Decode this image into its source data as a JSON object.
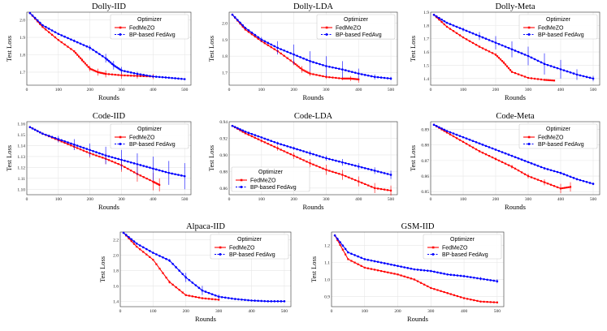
{
  "figure": {
    "xlabel": "Rounds",
    "ylabel": "Test Loss",
    "legend_title": "Optimizer",
    "series_names": [
      "FedMeZO",
      "BP-based FedAvg"
    ],
    "colors": {
      "fedmezo": "#ff0000",
      "fedavg": "#0000ff"
    }
  },
  "chart_data": [
    {
      "type": "line",
      "title": "Dolly-IID",
      "xlim": [
        0,
        520
      ],
      "ylim": [
        1.625,
        2.045
      ],
      "xticks": [
        0,
        100,
        200,
        300,
        400,
        500
      ],
      "yticks": [
        1.7,
        1.8,
        1.9,
        2.0
      ],
      "ytick_decimals": 1,
      "legend": "top-right",
      "series": [
        {
          "name": "FedMeZO",
          "color": "#ff0000",
          "x": [
            10,
            50,
            100,
            150,
            175,
            200,
            225,
            250,
            300,
            350,
            400
          ],
          "y": [
            2.04,
            1.96,
            1.885,
            1.82,
            1.77,
            1.72,
            1.7,
            1.69,
            1.682,
            1.678,
            1.675
          ],
          "err": [
            0,
            0.003,
            0.004,
            0.006,
            0.01,
            0.015,
            0.02,
            0.02,
            0.02,
            0.015,
            0.015
          ]
        },
        {
          "name": "BP-based FedAvg",
          "color": "#0000ff",
          "x": [
            10,
            50,
            100,
            150,
            200,
            250,
            275,
            300,
            350,
            400,
            450,
            500
          ],
          "y": [
            2.04,
            1.97,
            1.92,
            1.88,
            1.84,
            1.78,
            1.74,
            1.71,
            1.69,
            1.675,
            1.668,
            1.66
          ],
          "err": [
            0,
            0.003,
            0.005,
            0.008,
            0.015,
            0.025,
            0.025,
            0.02,
            0.012,
            0.008,
            0.006,
            0.005
          ]
        }
      ]
    },
    {
      "type": "line",
      "title": "Dolly-LDA",
      "xlim": [
        0,
        520
      ],
      "ylim": [
        1.625,
        2.065
      ],
      "xticks": [
        0,
        100,
        200,
        300,
        400,
        500
      ],
      "yticks": [
        1.7,
        1.8,
        1.9,
        2.0
      ],
      "ytick_decimals": 1,
      "legend": "top-right",
      "series": [
        {
          "name": "FedMeZO",
          "color": "#ff0000",
          "x": [
            10,
            50,
            100,
            150,
            200,
            225,
            250,
            300,
            350,
            375,
            400
          ],
          "y": [
            2.05,
            1.96,
            1.89,
            1.83,
            1.76,
            1.72,
            1.695,
            1.675,
            1.665,
            1.665,
            1.66
          ],
          "err": [
            0,
            0.003,
            0.005,
            0.01,
            0.015,
            0.02,
            0.015,
            0.012,
            0.01,
            0.015,
            0.02
          ]
        },
        {
          "name": "BP-based FedAvg",
          "color": "#0000ff",
          "x": [
            10,
            50,
            100,
            150,
            200,
            250,
            300,
            350,
            400,
            450,
            500
          ],
          "y": [
            2.05,
            1.97,
            1.9,
            1.85,
            1.81,
            1.77,
            1.74,
            1.72,
            1.695,
            1.675,
            1.665
          ],
          "err": [
            0,
            0.005,
            0.015,
            0.04,
            0.06,
            0.06,
            0.06,
            0.05,
            0.03,
            0.015,
            0.01
          ]
        }
      ]
    },
    {
      "type": "line",
      "title": "Dolly-Meta",
      "xlim": [
        0,
        520
      ],
      "ylim": [
        1.35,
        1.9
      ],
      "xticks": [
        0,
        100,
        200,
        300,
        400,
        500
      ],
      "yticks": [
        1.4,
        1.5,
        1.6,
        1.7,
        1.8,
        1.9
      ],
      "ytick_decimals": 1,
      "legend": "top-right",
      "series": [
        {
          "name": "FedMeZO",
          "color": "#ff0000",
          "x": [
            10,
            50,
            100,
            150,
            200,
            225,
            250,
            300,
            350,
            380
          ],
          "y": [
            1.88,
            1.79,
            1.71,
            1.64,
            1.58,
            1.52,
            1.45,
            1.405,
            1.39,
            1.385
          ],
          "err": [
            0,
            0.003,
            0.005,
            0.008,
            0.01,
            0.01,
            0.008,
            0.005,
            0.005,
            0.005
          ]
        },
        {
          "name": "BP-based FedAvg",
          "color": "#0000ff",
          "x": [
            10,
            50,
            100,
            150,
            200,
            250,
            300,
            350,
            400,
            450,
            500
          ],
          "y": [
            1.88,
            1.82,
            1.77,
            1.72,
            1.67,
            1.62,
            1.57,
            1.51,
            1.47,
            1.43,
            1.4
          ],
          "err": [
            0,
            0.005,
            0.015,
            0.03,
            0.05,
            0.06,
            0.07,
            0.08,
            0.07,
            0.04,
            0.02
          ]
        }
      ]
    },
    {
      "type": "line",
      "title": "Code-IID",
      "xlim": [
        0,
        520
      ],
      "ylim": [
        1.095,
        1.162
      ],
      "xticks": [
        0,
        100,
        200,
        300,
        400,
        500
      ],
      "yticks": [
        1.1,
        1.11,
        1.12,
        1.13,
        1.14,
        1.15,
        1.16
      ],
      "ytick_decimals": 2,
      "legend": "top-right",
      "series": [
        {
          "name": "FedMeZO",
          "color": "#ff0000",
          "x": [
            10,
            50,
            100,
            150,
            200,
            250,
            300,
            350,
            400,
            420
          ],
          "y": [
            1.157,
            1.151,
            1.145,
            1.139,
            1.133,
            1.128,
            1.122,
            1.114,
            1.107,
            1.104
          ],
          "err": [
            0,
            0.001,
            0.002,
            0.003,
            0.004,
            0.005,
            0.006,
            0.007,
            0.008,
            0.006
          ]
        },
        {
          "name": "BP-based FedAvg",
          "color": "#0000ff",
          "x": [
            10,
            50,
            100,
            150,
            200,
            250,
            300,
            350,
            400,
            450,
            500
          ],
          "y": [
            1.157,
            1.151,
            1.146,
            1.141,
            1.136,
            1.131,
            1.127,
            1.123,
            1.119,
            1.115,
            1.112
          ],
          "err": [
            0,
            0.001,
            0.003,
            0.005,
            0.006,
            0.008,
            0.009,
            0.01,
            0.011,
            0.011,
            0.012
          ]
        }
      ]
    },
    {
      "type": "line",
      "title": "Code-LDA",
      "xlim": [
        0,
        520
      ],
      "ylim": [
        0.852,
        0.94
      ],
      "xticks": [
        0,
        100,
        200,
        300,
        400,
        500
      ],
      "yticks": [
        0.86,
        0.88,
        0.9,
        0.92,
        0.94
      ],
      "ytick_decimals": 2,
      "legend": "lower-left",
      "series": [
        {
          "name": "FedMeZO",
          "color": "#ff0000",
          "x": [
            10,
            50,
            100,
            150,
            200,
            250,
            300,
            350,
            400,
            450,
            500
          ],
          "y": [
            0.935,
            0.926,
            0.917,
            0.908,
            0.899,
            0.89,
            0.882,
            0.876,
            0.868,
            0.86,
            0.857
          ],
          "err": [
            0,
            0.001,
            0.002,
            0.003,
            0.004,
            0.005,
            0.006,
            0.006,
            0.006,
            0.006,
            0.006
          ]
        },
        {
          "name": "BP-based FedAvg",
          "color": "#0000ff",
          "x": [
            10,
            50,
            100,
            150,
            200,
            250,
            300,
            350,
            400,
            450,
            500
          ],
          "y": [
            0.935,
            0.928,
            0.921,
            0.914,
            0.908,
            0.902,
            0.896,
            0.891,
            0.886,
            0.881,
            0.876
          ],
          "err": [
            0,
            0.001,
            0.001,
            0.002,
            0.002,
            0.003,
            0.003,
            0.004,
            0.004,
            0.004,
            0.005
          ]
        }
      ]
    },
    {
      "type": "line",
      "title": "Code-Meta",
      "xlim": [
        0,
        520
      ],
      "ylim": [
        0.848,
        0.895
      ],
      "xticks": [
        0,
        100,
        200,
        300,
        400,
        500
      ],
      "yticks": [
        0.85,
        0.86,
        0.87,
        0.88,
        0.89
      ],
      "ytick_decimals": 2,
      "legend": "top-right",
      "series": [
        {
          "name": "FedMeZO",
          "color": "#ff0000",
          "x": [
            10,
            50,
            100,
            150,
            200,
            250,
            300,
            350,
            400,
            430
          ],
          "y": [
            0.893,
            0.888,
            0.882,
            0.876,
            0.871,
            0.866,
            0.86,
            0.856,
            0.852,
            0.853
          ],
          "err": [
            0,
            0.0003,
            0.0005,
            0.0008,
            0.001,
            0.0012,
            0.0015,
            0.002,
            0.003,
            0.003
          ]
        },
        {
          "name": "BP-based FedAvg",
          "color": "#0000ff",
          "x": [
            10,
            50,
            100,
            150,
            200,
            250,
            300,
            350,
            400,
            450,
            500
          ],
          "y": [
            0.893,
            0.889,
            0.885,
            0.881,
            0.877,
            0.873,
            0.869,
            0.865,
            0.862,
            0.858,
            0.855
          ],
          "err": [
            0,
            0.0003,
            0.0004,
            0.0005,
            0.0006,
            0.0007,
            0.0007,
            0.0008,
            0.0008,
            0.0008,
            0.0008
          ]
        }
      ]
    },
    {
      "type": "line",
      "title": "Alpaca-IID",
      "xlim": [
        0,
        520
      ],
      "ylim": [
        1.33,
        2.3
      ],
      "xticks": [
        0,
        100,
        200,
        300,
        400,
        500
      ],
      "yticks": [
        1.4,
        1.6,
        1.8,
        2.0,
        2.2
      ],
      "ytick_decimals": 1,
      "legend": "top-right",
      "series": [
        {
          "name": "FedMeZO",
          "color": "#ff0000",
          "x": [
            10,
            50,
            100,
            150,
            200,
            250,
            300
          ],
          "y": [
            2.29,
            2.11,
            1.94,
            1.65,
            1.48,
            1.44,
            1.42
          ],
          "err": [
            0,
            0.005,
            0.01,
            0.02,
            0.01,
            0.008,
            0.01
          ]
        },
        {
          "name": "BP-based FedAvg",
          "color": "#0000ff",
          "x": [
            10,
            50,
            100,
            150,
            200,
            250,
            300,
            350,
            400,
            450,
            500
          ],
          "y": [
            2.29,
            2.15,
            2.03,
            1.93,
            1.71,
            1.54,
            1.46,
            1.43,
            1.41,
            1.4,
            1.4
          ],
          "err": [
            0,
            0.005,
            0.01,
            0.02,
            0.06,
            0.06,
            0.03,
            0.015,
            0.01,
            0.008,
            0.006
          ]
        }
      ]
    },
    {
      "type": "line",
      "title": "GSM-IID",
      "xlim": [
        0,
        520
      ],
      "ylim": [
        0.84,
        1.28
      ],
      "xticks": [
        0,
        100,
        200,
        300,
        400,
        500
      ],
      "yticks": [
        0.9,
        1.0,
        1.1,
        1.2
      ],
      "ytick_decimals": 1,
      "legend": "top-right",
      "series": [
        {
          "name": "FedMeZO",
          "color": "#ff0000",
          "x": [
            10,
            50,
            100,
            150,
            200,
            250,
            300,
            350,
            400,
            450,
            500
          ],
          "y": [
            1.26,
            1.12,
            1.07,
            1.05,
            1.03,
            1.0,
            0.95,
            0.92,
            0.89,
            0.87,
            0.865
          ],
          "err": [
            0,
            0.003,
            0.004,
            0.005,
            0.005,
            0.006,
            0.006,
            0.006,
            0.006,
            0.006,
            0.006
          ]
        },
        {
          "name": "BP-based FedAvg",
          "color": "#0000ff",
          "x": [
            10,
            50,
            100,
            150,
            200,
            250,
            300,
            350,
            400,
            450,
            500
          ],
          "y": [
            1.26,
            1.16,
            1.12,
            1.1,
            1.08,
            1.06,
            1.05,
            1.03,
            1.02,
            1.005,
            0.99
          ],
          "err": [
            0,
            0.003,
            0.004,
            0.004,
            0.005,
            0.005,
            0.006,
            0.006,
            0.008,
            0.01,
            0.012
          ]
        }
      ]
    }
  ]
}
